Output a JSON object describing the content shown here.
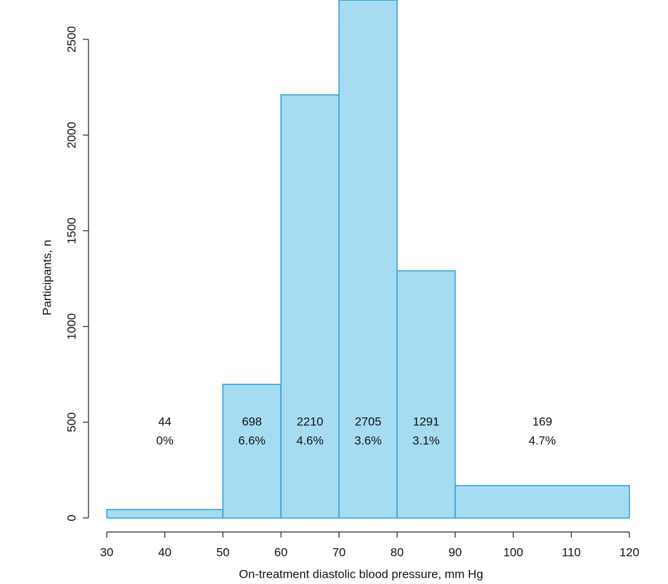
{
  "chart_data": {
    "type": "histogram",
    "xlabel": "On-treatment diastolic blood pressure, mm Hg",
    "ylabel": "Participants, n",
    "bins": [
      30,
      50,
      60,
      70,
      80,
      90,
      120
    ],
    "values": [
      44,
      698,
      2210,
      2705,
      1291,
      169
    ],
    "rate_labels": [
      "0%",
      "6.6%",
      "4.6%",
      "3.6%",
      "3.1%",
      "4.7%"
    ],
    "color": "#a6dcf2",
    "edgecolor": "#2a9fd6",
    "xlim": [
      30,
      120
    ],
    "xticks": [
      30,
      40,
      50,
      60,
      70,
      80,
      90,
      100,
      110,
      120
    ],
    "ylim": [
      0,
      2500
    ],
    "yticks": [
      0,
      500,
      1000,
      1500,
      2000,
      2500
    ]
  }
}
